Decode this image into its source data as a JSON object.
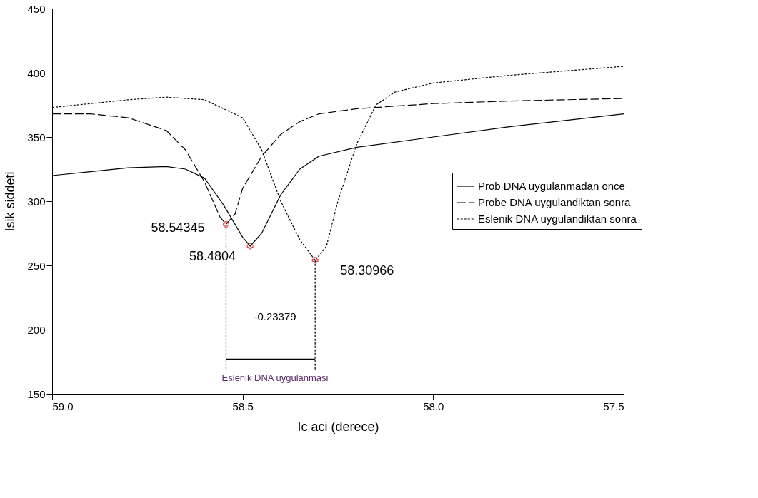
{
  "chart_data": {
    "type": "line",
    "xlabel": "Ic aci (derece)",
    "ylabel": "Isik siddeti",
    "xlim": [
      59.0,
      57.5
    ],
    "xticks": [
      {
        "value": 59,
        "label": "59.0"
      },
      {
        "value": 58.5,
        "label": "58.5"
      },
      {
        "value": 58,
        "label": "58.0"
      },
      {
        "value": 57.5,
        "label": "57.5"
      }
    ],
    "ylim": [
      150,
      450
    ],
    "yticks": [
      150,
      200,
      250,
      300,
      350,
      400,
      450
    ],
    "grid": false,
    "legend": "right",
    "marker": "none",
    "series": [
      {
        "name": "Prob DNA uygulanmadan once",
        "color": "#000000",
        "line_style": "solid",
        "x": [
          59.0,
          58.9,
          58.8,
          58.7,
          58.65,
          58.6,
          58.55,
          58.5,
          58.4804,
          58.45,
          58.4,
          58.35,
          58.3,
          58.2,
          58.0,
          57.8,
          57.5
        ],
        "values": [
          320,
          323,
          326,
          327,
          325,
          318,
          297,
          272,
          265,
          275,
          305,
          325,
          335,
          342,
          350,
          358,
          368
        ]
      },
      {
        "name": "Probe DNA uygulandiktan sonra",
        "color": "#000000",
        "line_style": "dashed",
        "x": [
          59.0,
          58.9,
          58.8,
          58.7,
          58.65,
          58.6,
          58.56,
          58.54345,
          58.52,
          58.5,
          58.45,
          58.4,
          58.35,
          58.3,
          58.2,
          58.0,
          57.8,
          57.5
        ],
        "values": [
          368,
          368,
          365,
          355,
          340,
          315,
          288,
          282,
          290,
          310,
          335,
          352,
          362,
          368,
          372,
          376,
          378,
          380
        ]
      },
      {
        "name": "Eslenik DNA uygulandiktan sonra",
        "color": "#000000",
        "line_style": "dotted",
        "x": [
          59.0,
          58.8,
          58.7,
          58.6,
          58.5,
          58.45,
          58.4,
          58.35,
          58.30966,
          58.28,
          58.25,
          58.2,
          58.15,
          58.1,
          58.0,
          57.8,
          57.5
        ],
        "values": [
          373,
          379,
          381,
          379,
          365,
          340,
          300,
          270,
          254,
          265,
          300,
          345,
          375,
          385,
          392,
          398,
          405
        ]
      },
      {
        "type": "scatter",
        "color": "#cc0000",
        "marker": "cross",
        "x": [
          58.54345,
          58.4804,
          58.30966
        ],
        "values": [
          282,
          265,
          254
        ]
      },
      {
        "color": "#000000",
        "line_style": "dotted",
        "x": [
          58.54345,
          58.54345
        ],
        "values": [
          282,
          168
        ]
      },
      {
        "color": "#000000",
        "line_style": "dotted",
        "x": [
          58.30966,
          58.30966
        ],
        "values": [
          254,
          168
        ]
      },
      {
        "color": "#000000",
        "line_style": "solid",
        "x": [
          58.54345,
          58.30966
        ],
        "values": [
          177,
          177
        ]
      }
    ],
    "annotations": [
      {
        "text": "58.54345",
        "x": 58.54345,
        "y": 282
      },
      {
        "text": "58.4804",
        "x": 58.4804,
        "y": 265
      },
      {
        "text": "58.30966",
        "x": 58.30966,
        "y": 254
      },
      "-0.23379",
      "Eslenik DNA uygulanmasi"
    ]
  }
}
